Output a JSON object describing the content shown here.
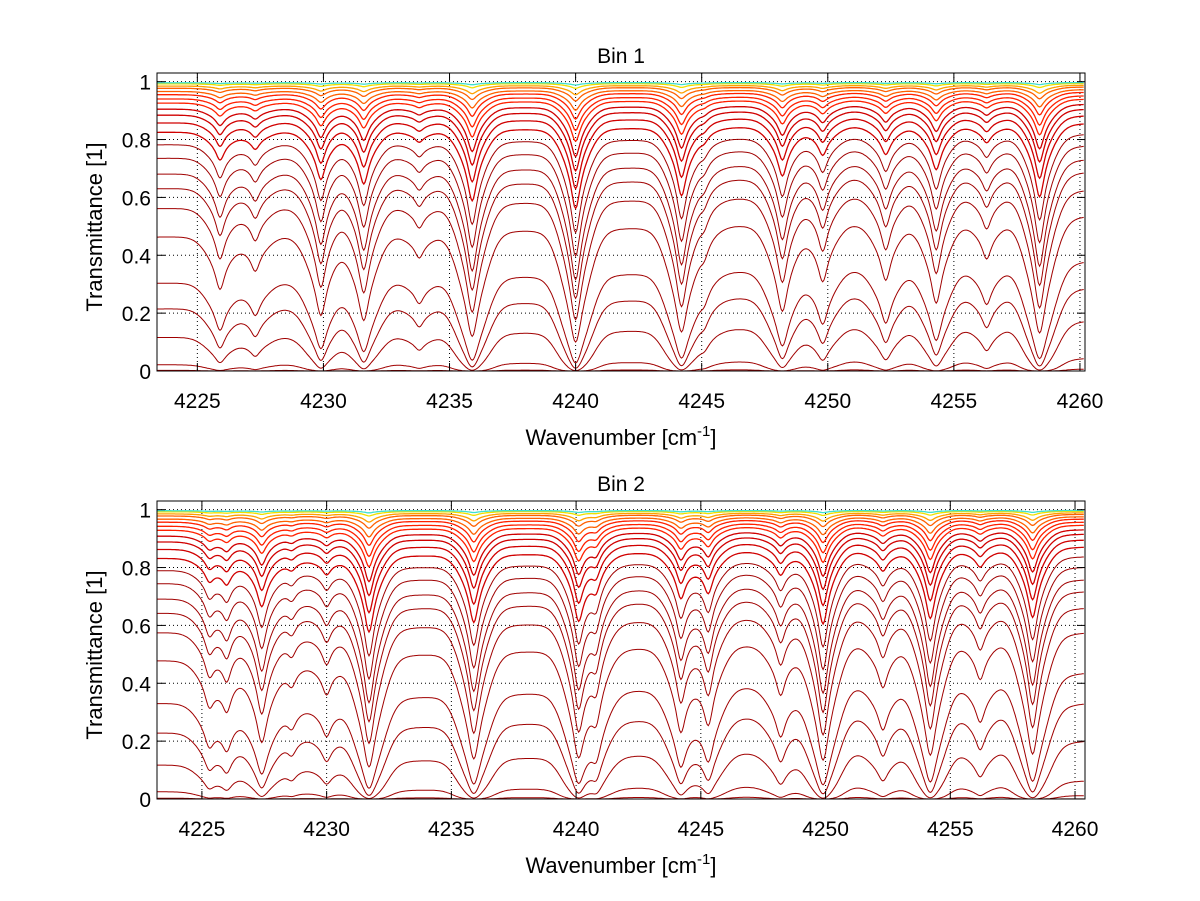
{
  "chart_data": [
    {
      "type": "line",
      "title": "Bin 1",
      "xlabel": "Wavenumber [cm",
      "xlabel_sup": "-1",
      "xlabel_end": "]",
      "ylabel": "Transmittance [1]",
      "xlim": [
        4223.4,
        4260.2
      ],
      "ylim": [
        0,
        1.03
      ],
      "xticks": [
        4225,
        4230,
        4235,
        4240,
        4245,
        4250,
        4255,
        4260
      ],
      "yticks": [
        0,
        0.2,
        0.4,
        0.6,
        0.8,
        1
      ],
      "ytick_labels": [
        "0",
        "0.2",
        "0.4",
        "0.6",
        "0.8",
        "1"
      ],
      "grid": true,
      "continuum_tau": {
        "at_4260": 0.62,
        "slope_per_cm": 0.004
      },
      "absorption_lines": [
        {
          "center": 4225.9,
          "tau": 0.5
        },
        {
          "center": 4227.3,
          "tau": 0.3
        },
        {
          "center": 4229.9,
          "tau": 0.9
        },
        {
          "center": 4231.6,
          "tau": 1.0
        },
        {
          "center": 4233.8,
          "tau": 0.2
        },
        {
          "center": 4235.9,
          "tau": 1.4
        },
        {
          "center": 4240.0,
          "tau": 1.6
        },
        {
          "center": 4244.2,
          "tau": 1.3
        },
        {
          "center": 4245.1,
          "tau": 0.15
        },
        {
          "center": 4248.2,
          "tau": 0.9
        },
        {
          "center": 4249.8,
          "tau": 0.5
        },
        {
          "center": 4252.3,
          "tau": 0.5
        },
        {
          "center": 4254.3,
          "tau": 0.8
        },
        {
          "center": 4256.3,
          "tau": 0.3
        },
        {
          "center": 4258.4,
          "tau": 1.4
        }
      ],
      "series_scales": [
        0.005,
        0.01,
        0.02,
        0.03,
        0.045,
        0.06,
        0.08,
        0.1,
        0.13,
        0.16,
        0.2,
        0.25,
        0.32,
        0.4,
        0.5,
        0.6,
        0.75,
        1.0,
        1.55,
        2.0,
        2.8,
        5.0,
        8.0,
        14.0
      ]
    },
    {
      "type": "line",
      "title": "Bin 2",
      "xlabel": "Wavenumber [cm",
      "xlabel_sup": "-1",
      "xlabel_end": "]",
      "ylabel": "Transmittance [1]",
      "xlim": [
        4223.2,
        4260.4
      ],
      "ylim": [
        0,
        1.03
      ],
      "xticks": [
        4225,
        4230,
        4235,
        4240,
        4245,
        4250,
        4255,
        4260
      ],
      "yticks": [
        0,
        0.2,
        0.4,
        0.6,
        0.8,
        1
      ],
      "ytick_labels": [
        "0",
        "0.2",
        "0.4",
        "0.6",
        "0.8",
        "1"
      ],
      "grid": true,
      "continuum_tau": {
        "at_4260": 0.55,
        "slope_per_cm": 0.005
      },
      "absorption_lines": [
        {
          "center": 4225.3,
          "tau": 0.35
        },
        {
          "center": 4226.0,
          "tau": 0.4
        },
        {
          "center": 4227.4,
          "tau": 0.9
        },
        {
          "center": 4228.6,
          "tau": 0.2
        },
        {
          "center": 4230.0,
          "tau": 0.3
        },
        {
          "center": 4231.7,
          "tau": 1.5
        },
        {
          "center": 4235.9,
          "tau": 1.3
        },
        {
          "center": 4240.1,
          "tau": 1.2
        },
        {
          "center": 4240.8,
          "tau": 0.5
        },
        {
          "center": 4244.2,
          "tau": 0.8
        },
        {
          "center": 4245.3,
          "tau": 0.7
        },
        {
          "center": 4248.2,
          "tau": 0.4
        },
        {
          "center": 4249.9,
          "tau": 1.4
        },
        {
          "center": 4252.3,
          "tau": 0.35
        },
        {
          "center": 4254.2,
          "tau": 1.3
        },
        {
          "center": 4256.2,
          "tau": 0.3
        },
        {
          "center": 4258.3,
          "tau": 1.3
        }
      ],
      "series_scales": [
        0.005,
        0.01,
        0.02,
        0.03,
        0.045,
        0.06,
        0.08,
        0.1,
        0.13,
        0.16,
        0.2,
        0.25,
        0.32,
        0.4,
        0.5,
        0.6,
        0.75,
        1.0,
        1.5,
        2.0,
        2.9,
        5.0,
        8.0,
        14.0
      ]
    }
  ]
}
